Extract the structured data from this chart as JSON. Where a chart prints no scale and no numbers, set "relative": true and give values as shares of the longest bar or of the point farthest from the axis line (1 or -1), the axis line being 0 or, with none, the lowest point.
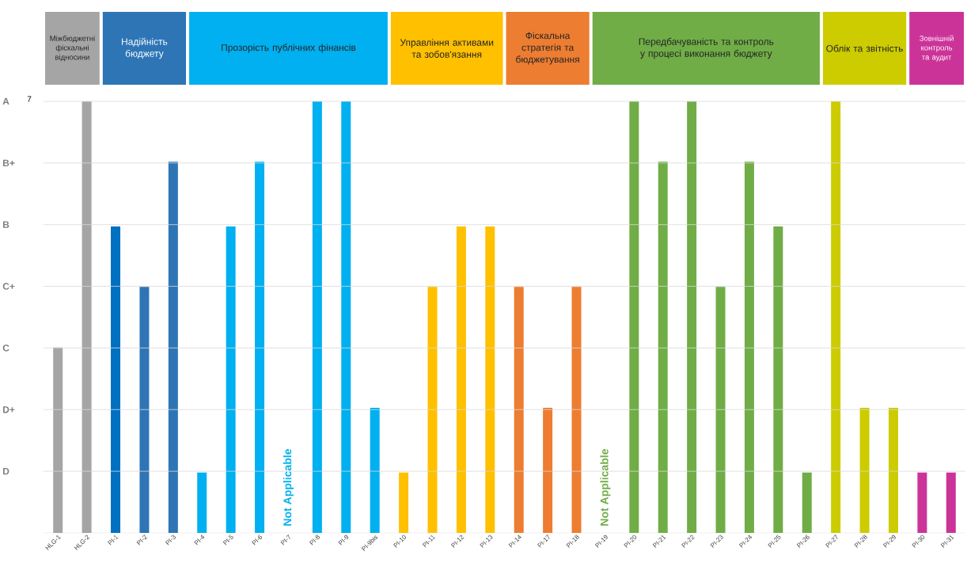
{
  "chart_data": [
    {
      "type": "other",
      "categories": [
        "Міжбюджетні фіскальні відносини",
        "Надійність бюджету",
        "Прозорість публічних фінансів",
        "Управління активами та зобов'язання",
        "Фіскальна стратегія та бюджетування",
        "Передбачуваність та контроль у процесі виконання бюджету",
        "Облік та звітність",
        "Зовнішній контроль та аудит"
      ],
      "colors": [
        "#a5a5a5",
        "#2e75b6",
        "#00b0f0",
        "#ffc000",
        "#ed7d31",
        "#70ad47",
        "#cccc00",
        "#cc3399"
      ]
    },
    {
      "type": "bar",
      "relative": true,
      "categories": [
        "HLG-1",
        "HLG-2",
        "PI-1",
        "PI-2",
        "PI-3",
        "PI-4",
        "PI-5",
        "PI-6",
        "PI-7",
        "PI-8",
        "PI-9",
        "PI-9bis",
        "PI-10",
        "PI-11",
        "PI-12",
        "PI-13",
        "PI-14",
        "PI-17",
        "PI-18",
        "PI-19",
        "PI-20",
        "PI-21",
        "PI-22",
        "PI-23",
        "PI-24",
        "PI-25",
        "PI-26",
        "PI-27",
        "PI-28",
        "PI-29",
        "PI-30",
        "PI-31"
      ],
      "values": [
        0.43,
        1,
        0.71,
        0.57,
        0.86,
        0.14,
        0.71,
        0.86,
        null,
        1,
        1,
        0.29,
        0.14,
        0.57,
        0.71,
        0.71,
        0.57,
        0.29,
        0.57,
        null,
        1,
        0.86,
        1,
        0.57,
        0.86,
        0.71,
        0.14,
        1,
        0.29,
        0.29,
        0.14,
        0.14
      ],
      "colors": [
        "#a5a5a5",
        "#a5a5a5",
        "#0070c0",
        "#2e75b6",
        "#2e75b6",
        "#00b0f0",
        "#00b0f0",
        "#00b0f0",
        "#00b0f0",
        "#00b0f0",
        "#00b0f0",
        "#00b0f0",
        "#ffc000",
        "#ffc000",
        "#ffc000",
        "#ffc000",
        "#ed7d31",
        "#ed7d31",
        "#ed7d31",
        "#70ad47",
        "#70ad47",
        "#70ad47",
        "#70ad47",
        "#70ad47",
        "#70ad47",
        "#70ad47",
        "#70ad47",
        "#cccc00",
        "#cccc00",
        "#cccc00",
        "#cc3399",
        "#cc3399"
      ],
      "grid": "y",
      "annotations": [
        "Not Applicable",
        "Not Applicable",
        "D",
        "D+",
        "C",
        "C+",
        "B",
        "B+",
        "A",
        "7"
      ]
    }
  ]
}
